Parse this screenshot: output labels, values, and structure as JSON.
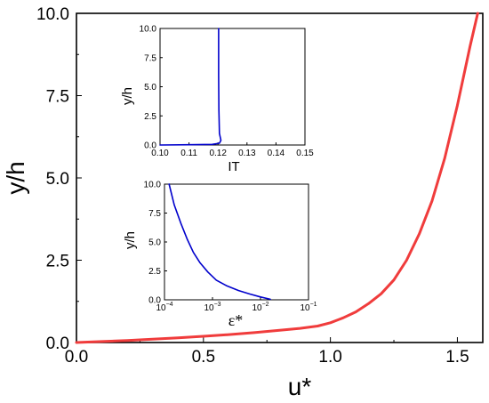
{
  "chart_data": [
    {
      "type": "line",
      "xlabel": "u*",
      "ylabel": "y/h",
      "xlim": [
        0,
        1.6
      ],
      "ylim": [
        0,
        10
      ],
      "x_ticks": [
        "0.0",
        "0.5",
        "1.0",
        "1.5"
      ],
      "x_tick_values": [
        0,
        0.5,
        1.0,
        1.5
      ],
      "y_ticks": [
        "0.0",
        "2.5",
        "5.0",
        "7.5",
        "10.0"
      ],
      "y_tick_values": [
        0,
        2.5,
        5.0,
        7.5,
        10.0
      ],
      "grid": false,
      "series": [
        {
          "color": "#f03c3c",
          "x": [
            0,
            0.1,
            0.2,
            0.3,
            0.4,
            0.5,
            0.6,
            0.7,
            0.8,
            0.88,
            0.95,
            1.0,
            1.05,
            1.1,
            1.15,
            1.2,
            1.25,
            1.3,
            1.35,
            1.4,
            1.45,
            1.5,
            1.55,
            1.58
          ],
          "y": [
            0,
            0.03,
            0.06,
            0.1,
            0.14,
            0.19,
            0.24,
            0.3,
            0.37,
            0.43,
            0.5,
            0.6,
            0.75,
            0.93,
            1.18,
            1.48,
            1.9,
            2.5,
            3.3,
            4.3,
            5.6,
            7.2,
            9.0,
            10.0
          ]
        }
      ]
    },
    {
      "type": "line",
      "xlabel": "IT",
      "ylabel": "y/h",
      "xlim": [
        0.1,
        0.15
      ],
      "ylim": [
        0,
        10
      ],
      "x_ticks": [
        "0.10",
        "0.11",
        "0.12",
        "0.13",
        "0.14",
        "0.15"
      ],
      "x_tick_values": [
        0.1,
        0.11,
        0.12,
        0.13,
        0.14,
        0.15
      ],
      "y_ticks": [
        "0.0",
        "2.5",
        "5.0",
        "7.5",
        "10.0"
      ],
      "y_tick_values": [
        0,
        2.5,
        5.0,
        7.5,
        10.0
      ],
      "series": [
        {
          "color": "#0000cc",
          "x": [
            0.1,
            0.11,
            0.118,
            0.1205,
            0.121,
            0.1205,
            0.1203,
            0.1202,
            0.1202
          ],
          "y": [
            0.0,
            0.02,
            0.05,
            0.15,
            0.4,
            1.0,
            3.0,
            6.0,
            10.0
          ]
        }
      ]
    },
    {
      "type": "line",
      "xlabel": "ε*",
      "ylabel": "y/h",
      "xscale": "log",
      "xlim": [
        0.0001,
        0.1
      ],
      "ylim": [
        0,
        10
      ],
      "x_ticks": [
        "10",
        "10",
        "10",
        "10"
      ],
      "x_tick_exponents": [
        "−4",
        "−3",
        "−2",
        "−1"
      ],
      "x_tick_values": [
        0.0001,
        0.001,
        0.01,
        0.1
      ],
      "y_ticks": [
        "0.0",
        "2.5",
        "5.0",
        "7.5",
        "10.0"
      ],
      "y_tick_values": [
        0,
        2.5,
        5.0,
        7.5,
        10.0
      ],
      "series": [
        {
          "color": "#0000cc",
          "x": [
            0.000125,
            0.00016,
            0.00022,
            0.0003,
            0.0004,
            0.00055,
            0.0008,
            0.0012,
            0.002,
            0.0035,
            0.006,
            0.01,
            0.016
          ],
          "y": [
            10.0,
            8.2,
            6.6,
            5.2,
            4.1,
            3.2,
            2.4,
            1.7,
            1.2,
            0.8,
            0.5,
            0.25,
            0.05
          ]
        }
      ]
    }
  ]
}
